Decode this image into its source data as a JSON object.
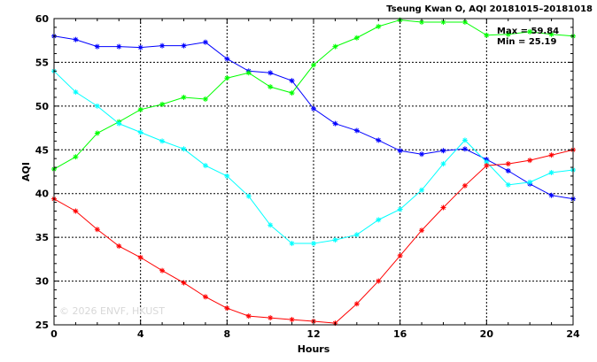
{
  "chart_data": {
    "type": "line",
    "title": "Tseung Kwan O, AQI 20181015–20181018",
    "xlabel": "Hours",
    "ylabel": "AQI",
    "xlim": [
      0,
      24
    ],
    "ylim": [
      25,
      60
    ],
    "x_ticks": [
      0,
      4,
      8,
      12,
      16,
      20,
      24
    ],
    "y_ticks": [
      25,
      30,
      35,
      40,
      45,
      50,
      55,
      60
    ],
    "grid": true,
    "stats": {
      "max_label": "Max = 59.84",
      "min_label": "Min = 25.19"
    },
    "watermark": "© 2026 ENVF, HKUST",
    "x": [
      0,
      1,
      2,
      3,
      4,
      5,
      6,
      7,
      8,
      9,
      10,
      11,
      12,
      13,
      14,
      15,
      16,
      17,
      18,
      19,
      20,
      21,
      22,
      23,
      24
    ],
    "series": [
      {
        "color": "#0000ff",
        "values": [
          58.0,
          57.6,
          56.8,
          56.8,
          56.7,
          56.9,
          56.9,
          57.3,
          55.4,
          54.0,
          53.8,
          52.9,
          49.7,
          48.0,
          47.2,
          46.1,
          44.9,
          44.5,
          44.9,
          45.1,
          43.9,
          42.6,
          41.1,
          39.8,
          39.4
        ]
      },
      {
        "color": "#00ff00",
        "values": [
          42.8,
          44.2,
          46.9,
          48.2,
          49.6,
          50.2,
          51.0,
          50.8,
          53.2,
          53.8,
          52.2,
          51.5,
          54.7,
          56.8,
          57.8,
          59.1,
          59.84,
          59.6,
          59.6,
          59.6,
          58.1,
          58.2,
          58.5,
          58.2,
          58.0
        ]
      },
      {
        "color": "#00ffff",
        "values": [
          54.0,
          51.6,
          50.0,
          48.0,
          47.0,
          46.0,
          45.1,
          43.2,
          42.0,
          39.7,
          36.4,
          34.3,
          34.3,
          34.7,
          35.3,
          37.0,
          38.2,
          40.4,
          43.4,
          46.1,
          43.6,
          41.0,
          41.3,
          42.4,
          42.7
        ]
      },
      {
        "color": "#ff0000",
        "values": [
          39.4,
          38.0,
          35.9,
          34.0,
          32.7,
          31.2,
          29.8,
          28.2,
          26.9,
          26.0,
          25.8,
          25.6,
          25.4,
          25.19,
          27.4,
          30.0,
          32.9,
          35.8,
          38.4,
          40.9,
          43.2,
          43.4,
          43.8,
          44.4,
          45.0
        ]
      }
    ]
  }
}
